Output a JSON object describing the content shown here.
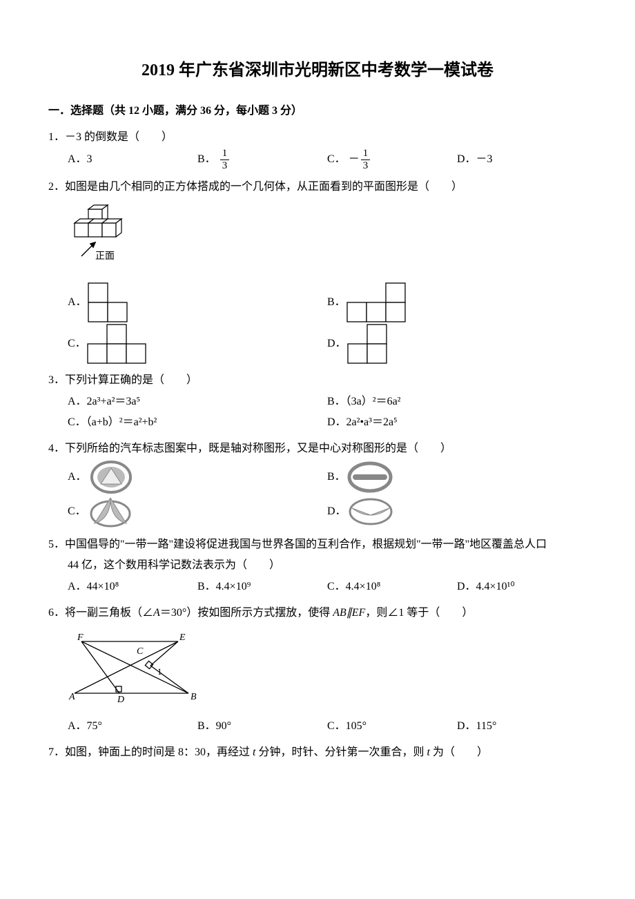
{
  "title": "2019 年广东省深圳市光明新区中考数学一模试卷",
  "section1": {
    "header": "一．选择题（共 12 小题，满分 36 分，每小题 3 分）"
  },
  "q1": {
    "num": "1．",
    "stem": "－3 的倒数是（　　）",
    "A": "A．3",
    "B_label": "B．",
    "B_num": "1",
    "B_den": "3",
    "C_label": "C．",
    "C_neg": "－",
    "C_num": "1",
    "C_den": "3",
    "D": "D．－3"
  },
  "q2": {
    "num": "2．",
    "stem": "如图是由几个相同的正方体搭成的一个几何体，从正面看到的平面图形是（　　）",
    "front_label": "正面",
    "A": "A．",
    "B": "B．",
    "C": "C．",
    "D": "D．",
    "grids": {
      "A": [
        [
          1,
          0,
          0
        ],
        [
          1,
          1,
          0
        ]
      ],
      "B": [
        [
          0,
          0,
          1
        ],
        [
          1,
          1,
          1
        ]
      ],
      "C": [
        [
          0,
          1,
          0
        ],
        [
          1,
          1,
          1
        ]
      ],
      "D": [
        [
          0,
          1,
          0
        ],
        [
          1,
          1,
          0
        ]
      ]
    }
  },
  "q3": {
    "num": "3．",
    "stem": "下列计算正确的是（　　）",
    "A": "A．2a³+a²＝3a⁵",
    "B": "B．（3a）²＝6a²",
    "C": "C．（a+b）²＝a²+b²",
    "D": "D．2a²•a³＝2a⁵"
  },
  "q4": {
    "num": "4．",
    "stem": "下列所给的汽车标志图案中，既是轴对称图形，又是中心对称图形的是（　　）",
    "A": "A．",
    "B": "B．",
    "C": "C．",
    "D": "D．"
  },
  "q5": {
    "num": "5．",
    "stem": "中国倡导的\"一带一路\"建设将促进我国与世界各国的互利合作，根据规划\"一带一路\"地区覆盖总人口",
    "stem2": "44 亿，这个数用科学记数法表示为（　　）",
    "A": "A．44×10⁸",
    "B": "B．4.4×10⁹",
    "C": "C．4.4×10⁸",
    "D": "D．4.4×10¹⁰"
  },
  "q6": {
    "num": "6．",
    "stem_a": "将一副三角板（∠",
    "stem_b": "＝30°）按如图所示方式摆放，使得 ",
    "stem_c": "，则∠1 等于（　　）",
    "A_label": "A",
    "AB_par": "AB∥EF",
    "labels": {
      "F": "F",
      "E": "E",
      "C": "C",
      "A": "A",
      "D": "D",
      "B": "B",
      "one": "1"
    },
    "optA": "A．75°",
    "optB": "B．90°",
    "optC": "C．105°",
    "optD": "D．115°"
  },
  "q7": {
    "num": "7．",
    "stem_a": "如图，钟面上的时间是 8：30，再经过 ",
    "stem_b": " 分钟，时针、分针第一次重合，则 ",
    "stem_c": " 为（　　）",
    "t": "t"
  },
  "colors": {
    "text": "#000000",
    "bg": "#ffffff",
    "line": "#000000"
  }
}
